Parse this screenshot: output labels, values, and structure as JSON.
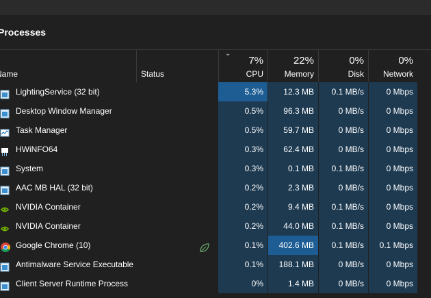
{
  "window": {
    "title": "Processes"
  },
  "columns": {
    "name": "Name",
    "status": "Status",
    "cpu": {
      "label": "CPU",
      "total": "7%"
    },
    "memory": {
      "label": "Memory",
      "total": "22%"
    },
    "disk": {
      "label": "Disk",
      "total": "0%"
    },
    "network": {
      "label": "Network",
      "total": "0%"
    }
  },
  "colors": {
    "heat_light": "#1e3a51",
    "heat_hot": "#1d5d94",
    "background": "#202020"
  },
  "processes": [
    {
      "name": "LightingService (32 bit)",
      "icon": "app-window-icon",
      "status": "",
      "cpu": "5.3%",
      "memory": "12.3 MB",
      "disk": "0.1 MB/s",
      "network": "0 Mbps"
    },
    {
      "name": "Desktop Window Manager",
      "icon": "app-window-icon",
      "status": "",
      "cpu": "0.5%",
      "memory": "96.3 MB",
      "disk": "0 MB/s",
      "network": "0 Mbps"
    },
    {
      "name": "Task Manager",
      "icon": "task-manager-icon",
      "status": "",
      "cpu": "0.5%",
      "memory": "59.7 MB",
      "disk": "0 MB/s",
      "network": "0 Mbps"
    },
    {
      "name": "HWiNFO64",
      "icon": "chip-icon",
      "status": "",
      "cpu": "0.3%",
      "memory": "62.4 MB",
      "disk": "0 MB/s",
      "network": "0 Mbps"
    },
    {
      "name": "System",
      "icon": "app-window-icon",
      "status": "",
      "cpu": "0.3%",
      "memory": "0.1 MB",
      "disk": "0.1 MB/s",
      "network": "0 Mbps"
    },
    {
      "name": "AAC MB HAL (32 bit)",
      "icon": "app-window-icon",
      "status": "",
      "cpu": "0.2%",
      "memory": "2.3 MB",
      "disk": "0 MB/s",
      "network": "0 Mbps"
    },
    {
      "name": "NVIDIA Container",
      "icon": "nvidia-icon",
      "status": "",
      "cpu": "0.2%",
      "memory": "9.4 MB",
      "disk": "0.1 MB/s",
      "network": "0 Mbps"
    },
    {
      "name": "NVIDIA Container",
      "icon": "nvidia-icon",
      "status": "",
      "cpu": "0.2%",
      "memory": "44.0 MB",
      "disk": "0.1 MB/s",
      "network": "0 Mbps"
    },
    {
      "name": "Google Chrome (10)",
      "icon": "chrome-icon",
      "status": "efficiency-mode-leaf-icon",
      "cpu": "0.1%",
      "memory": "402.6 MB",
      "disk": "0.1 MB/s",
      "network": "0.1 Mbps"
    },
    {
      "name": "Antimalware Service Executable",
      "icon": "app-window-icon",
      "status": "",
      "cpu": "0.1%",
      "memory": "188.1 MB",
      "disk": "0 MB/s",
      "network": "0 Mbps"
    },
    {
      "name": "Client Server Runtime Process",
      "icon": "app-window-icon",
      "status": "",
      "cpu": "0%",
      "memory": "1.4 MB",
      "disk": "0 MB/s",
      "network": "0 Mbps"
    }
  ]
}
